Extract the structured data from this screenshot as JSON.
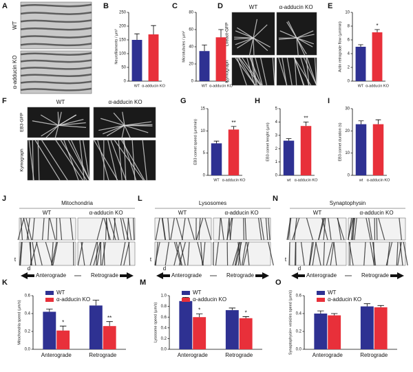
{
  "chart_data": [
    {
      "letter": "B",
      "type": "bar",
      "ylabel": "Neurofilaments / µm²",
      "categories": [
        "WT",
        "α-adducin KO"
      ],
      "values": [
        150,
        170
      ],
      "errors": [
        22,
        32
      ],
      "colors": [
        "#2e3192",
        "#e8303a"
      ],
      "ylim": [
        0,
        250
      ],
      "yticks": [
        0,
        50,
        100,
        150,
        200,
        250
      ]
    },
    {
      "letter": "C",
      "type": "bar",
      "ylabel": "Microtubules / µm²",
      "categories": [
        "WT",
        "α-adducin KO"
      ],
      "values": [
        35,
        51
      ],
      "errors": [
        7,
        9
      ],
      "colors": [
        "#2e3192",
        "#e8303a"
      ],
      "ylim": [
        0,
        80
      ],
      "yticks": [
        0,
        20,
        40,
        60,
        80
      ]
    },
    {
      "letter": "E",
      "type": "bar",
      "ylabel": "Actin retrograde flow (µm/min)",
      "categories": [
        "WT",
        "α-adducin KO"
      ],
      "values": [
        5.0,
        7.1
      ],
      "errors": [
        0.3,
        0.4
      ],
      "significance": [
        null,
        "*"
      ],
      "colors": [
        "#2e3192",
        "#e8303a"
      ],
      "ylim": [
        0,
        10
      ],
      "yticks": [
        0,
        2,
        4,
        6,
        8,
        10
      ]
    },
    {
      "letter": "G",
      "type": "bar",
      "ylabel": "EB3 comet speed (µm/min)",
      "categories": [
        "WT",
        "α-adducin KO"
      ],
      "values": [
        7.2,
        10.3
      ],
      "errors": [
        0.5,
        0.7
      ],
      "significance": [
        null,
        "**"
      ],
      "colors": [
        "#2e3192",
        "#e8303a"
      ],
      "ylim": [
        0,
        15
      ],
      "yticks": [
        0,
        5,
        10,
        15
      ]
    },
    {
      "letter": "H",
      "type": "bar",
      "ylabel": "EB3 comet lenght (µm)",
      "categories": [
        "wt",
        "α-adducin KO"
      ],
      "values": [
        2.6,
        3.7
      ],
      "errors": [
        0.15,
        0.3
      ],
      "significance": [
        null,
        "**"
      ],
      "colors": [
        "#2e3192",
        "#e8303a"
      ],
      "ylim": [
        0,
        5
      ],
      "yticks": [
        0,
        1,
        2,
        3,
        4,
        5
      ]
    },
    {
      "letter": "I",
      "type": "bar",
      "ylabel": "EB3 comet duration (s)",
      "categories": [
        "wt",
        "α-adducin KO"
      ],
      "values": [
        23,
        23
      ],
      "errors": [
        1.5,
        2
      ],
      "colors": [
        "#2e3192",
        "#e8303a"
      ],
      "ylim": [
        0,
        30
      ],
      "yticks": [
        0,
        10,
        20,
        30
      ]
    },
    {
      "letter": "K",
      "type": "grouped",
      "ylabel": "Mitochondria speed (µm/s)",
      "categories": [
        "Anterograde",
        "Retrograde"
      ],
      "ylim": [
        0,
        0.6
      ],
      "yticks": [
        {
          "value": 0,
          "label": "0.0"
        },
        0.2,
        0.4,
        0.6
      ],
      "series": [
        {
          "name": "WT",
          "color": "#2e3192",
          "values": [
            0.42,
            0.49
          ],
          "errors": [
            0.03,
            0.06
          ]
        },
        {
          "name": "α-adducin KO",
          "color": "#e8303a",
          "values": [
            0.21,
            0.26
          ],
          "errors": [
            0.05,
            0.05
          ],
          "significance": [
            "*",
            "**"
          ]
        }
      ]
    },
    {
      "letter": "M",
      "type": "grouped",
      "ylabel": "Lysosome speed (µm/s)",
      "categories": [
        "Anterograde",
        "Retrograde"
      ],
      "ylim": [
        0,
        1.0
      ],
      "yticks": [
        {
          "value": 0,
          "label": "0.0"
        },
        0.2,
        0.4,
        0.6,
        0.8,
        {
          "value": 1.0,
          "label": "1.0"
        }
      ],
      "series": [
        {
          "name": "WT",
          "color": "#2e3192",
          "values": [
            0.9,
            0.73
          ],
          "errors": [
            0.07,
            0.04
          ]
        },
        {
          "name": "α-adducin KO",
          "color": "#e8303a",
          "values": [
            0.6,
            0.58
          ],
          "errors": [
            0.06,
            0.03
          ],
          "significance": [
            "*",
            "*"
          ]
        }
      ]
    },
    {
      "letter": "O",
      "type": "grouped",
      "ylabel": "Synaptophysin+ vesicles speed (µm/s)",
      "categories": [
        "Anterograde",
        "Retrograde"
      ],
      "ylim": [
        0,
        0.6
      ],
      "yticks": [
        {
          "value": 0,
          "label": "0.0"
        },
        0.2,
        0.4,
        0.6
      ],
      "series": [
        {
          "name": "WT",
          "color": "#2e3192",
          "values": [
            0.4,
            0.48
          ],
          "errors": [
            0.03,
            0.03
          ]
        },
        {
          "name": "α-adducin KO",
          "color": "#e8303a",
          "values": [
            0.38,
            0.47
          ],
          "errors": [
            0.02,
            0.02
          ]
        }
      ]
    }
  ],
  "image_panels": [
    {
      "letter": "A",
      "labels": [
        "WT",
        "α-adducin KO"
      ]
    },
    {
      "letter": "D",
      "columns": [
        "WT",
        "α-adducin KO"
      ],
      "rows": [
        "Lifeact-GFP",
        "Kymograph"
      ]
    },
    {
      "letter": "F",
      "columns": [
        "WT",
        "α-adducin KO"
      ],
      "rows": [
        "EB3-GFP",
        "Kymograph"
      ]
    },
    {
      "letter": "J",
      "title": "Mitochondria",
      "columns": [
        "WT",
        "α-adducin KO"
      ],
      "axes": [
        "t",
        "d"
      ],
      "directions": [
        "Anterograde",
        "Retrograde"
      ]
    },
    {
      "letter": "L",
      "title": "Lysosomes",
      "columns": [
        "WT",
        "α-adducin KO"
      ],
      "axes": [
        "t",
        "d"
      ],
      "directions": [
        "Anterograde",
        "Retrograde"
      ]
    },
    {
      "letter": "N",
      "title": "Synaptophysin",
      "columns": [
        "WT",
        "α-adducin KO"
      ],
      "axes": [
        "t",
        "d"
      ],
      "directions": [
        "Anterograde",
        "Retrograde"
      ]
    }
  ]
}
